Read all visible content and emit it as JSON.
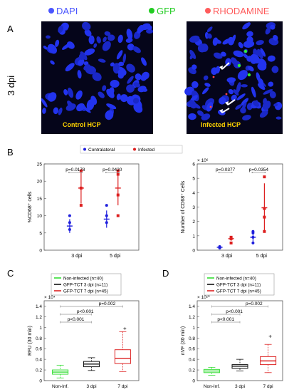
{
  "header": {
    "items": [
      {
        "label": "DAPI",
        "color": "#4a55ff"
      },
      {
        "label": "GFP",
        "color": "#22cc22"
      },
      {
        "label": "RHODAMINE",
        "color": "#ff5b5b"
      }
    ]
  },
  "panels": {
    "A": "A",
    "B": "B",
    "C": "C",
    "D": "D"
  },
  "row_label": "3 dpi",
  "images": [
    {
      "caption": "Control HCP",
      "caption_color": "#ffd400"
    },
    {
      "caption": "Infected HCP",
      "caption_color": "#ffd400"
    }
  ],
  "chart_data": [
    {
      "type": "scatter",
      "ylabel": "%CD68⁺ cells",
      "categories": [
        "3 dpi",
        "5 dpi"
      ],
      "ylim": [
        0,
        25
      ],
      "yticks": [
        0,
        5,
        10,
        15,
        20,
        25
      ],
      "legend": [
        "Contralateral",
        "Infected"
      ],
      "series": [
        {
          "name": "Contralateral",
          "color": "#1f1fdd",
          "points": [
            [
              0,
              6
            ],
            [
              0,
              8
            ],
            [
              0,
              10
            ],
            [
              1,
              8
            ],
            [
              1,
              10
            ],
            [
              1,
              13
            ]
          ],
          "means": [
            7,
            9
          ],
          "sd": [
            2,
            2.5
          ]
        },
        {
          "name": "Infected",
          "color": "#dd1f1f",
          "points": [
            [
              0,
              13
            ],
            [
              0,
              18
            ],
            [
              0,
              23
            ],
            [
              1,
              10
            ],
            [
              1,
              16
            ],
            [
              1,
              22
            ],
            [
              1,
              23
            ]
          ],
          "means": [
            18,
            18
          ],
          "sd": [
            4.5,
            5
          ]
        }
      ],
      "annotations": [
        "p=0.0178",
        "p=0.0420"
      ]
    },
    {
      "type": "scatter",
      "ylabel": "Number of CD68⁺ Cells",
      "exponent": "× 10⁶",
      "categories": [
        "3 dpi",
        "5 dpi"
      ],
      "ylim": [
        0,
        6
      ],
      "yticks": [
        0,
        1,
        2,
        3,
        4,
        5,
        6
      ],
      "series": [
        {
          "name": "Contralateral",
          "color": "#1f1fdd",
          "points": [
            [
              0,
              0.15
            ],
            [
              0,
              0.2
            ],
            [
              0,
              0.25
            ],
            [
              1,
              0.5
            ],
            [
              1,
              0.9
            ],
            [
              1,
              1.2
            ],
            [
              1,
              1.3
            ]
          ],
          "means": [
            0.2,
            0.9
          ],
          "sd": [
            0.05,
            0.3
          ]
        },
        {
          "name": "Infected",
          "color": "#dd1f1f",
          "points": [
            [
              0,
              0.5
            ],
            [
              0,
              0.8
            ],
            [
              0,
              0.9
            ],
            [
              1,
              1.3
            ],
            [
              1,
              2.3
            ],
            [
              1,
              2.9
            ],
            [
              1,
              5.1
            ]
          ],
          "means": [
            0.8,
            2.95
          ],
          "sd": [
            0.15,
            1.7
          ]
        }
      ],
      "annotations": [
        "p=0.0377",
        "p=0.0354"
      ]
    },
    {
      "type": "box",
      "ylabel": "RFU (30 min)",
      "exponent": "× 10⁴",
      "categories": [
        "Non-Inf.",
        "3 dpi",
        "7 dpi"
      ],
      "ylim": [
        0,
        1.5
      ],
      "yticks": [
        0,
        0.2,
        0.4,
        0.6,
        0.8,
        1,
        1.2,
        1.4
      ],
      "legend": [
        {
          "label": "Non-infected (n=40)",
          "color": "#33dd33"
        },
        {
          "label": "GFP-TCT 3 dpi (n=11)",
          "color": "#111111"
        },
        {
          "label": "GFP-TCT 7 dpi (n=45)",
          "color": "#dd2222"
        }
      ],
      "boxes": [
        {
          "min": 0.05,
          "q1": 0.12,
          "median": 0.16,
          "q3": 0.2,
          "max": 0.29,
          "color": "#33dd33"
        },
        {
          "min": 0.19,
          "q1": 0.26,
          "median": 0.31,
          "q3": 0.36,
          "max": 0.43,
          "color": "#111111"
        },
        {
          "min": 0.17,
          "q1": 0.32,
          "median": 0.42,
          "q3": 0.58,
          "max": 0.92,
          "color": "#dd2222",
          "outlier": 0.98
        }
      ],
      "annotations": [
        "p<0.001",
        "p<0.001",
        "p=0.002"
      ]
    },
    {
      "type": "box",
      "ylabel": "nVF (30 min)",
      "exponent": "× 10¹⁰",
      "categories": [
        "Non-Inf.",
        "3 dpi",
        "7 dpi"
      ],
      "ylim": [
        0,
        1.5
      ],
      "yticks": [
        0,
        0.2,
        0.4,
        0.6,
        0.8,
        1,
        1.2,
        1.4
      ],
      "legend": [
        {
          "label": "Non-infected (n=40)",
          "color": "#33dd33"
        },
        {
          "label": "GFP-TCT 3 dpi (n=11)",
          "color": "#111111"
        },
        {
          "label": "GFP-TCT 7 dpi (n=45)",
          "color": "#dd2222"
        }
      ],
      "boxes": [
        {
          "min": 0.1,
          "q1": 0.15,
          "median": 0.18,
          "q3": 0.21,
          "max": 0.25,
          "color": "#33dd33"
        },
        {
          "min": 0.18,
          "q1": 0.23,
          "median": 0.27,
          "q3": 0.3,
          "max": 0.4,
          "color": "#111111"
        },
        {
          "min": 0.15,
          "q1": 0.3,
          "median": 0.37,
          "q3": 0.45,
          "max": 0.68,
          "color": "#dd2222",
          "outlier": 0.83
        }
      ],
      "annotations": [
        "p<0.001",
        "p<0.001",
        "p=0.002"
      ]
    }
  ]
}
